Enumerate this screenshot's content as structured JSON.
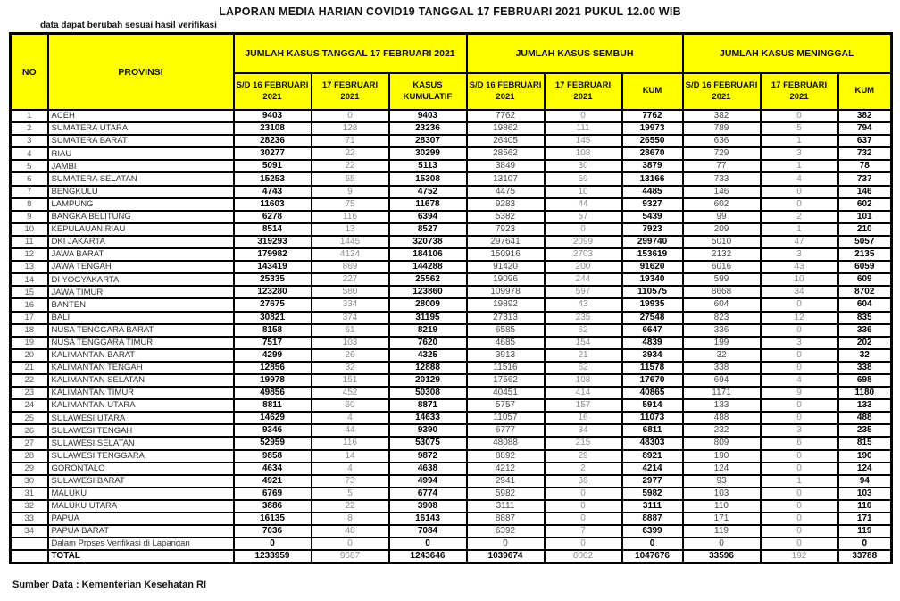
{
  "title": "LAPORAN MEDIA HARIAN COVID19 TANGGAL 17 FEBRUARI 2021 PUKUL 12.00 WIB",
  "note": "data dapat berubah sesuai hasil verifikasi",
  "footer": "Sumber Data : Kementerian Kesehatan RI",
  "colors": {
    "header_bg": "#FFFF00",
    "border": "#000000",
    "bold_value_text": "#000000",
    "muted_value_text": "#8C8C8C"
  },
  "table": {
    "col_no": "NO",
    "col_provinsi": "PROVINSI",
    "groups": [
      {
        "label": "JUMLAH KASUS TANGGAL 17 FEBRUARI 2021",
        "sub": [
          "S/D 16 FEBRUARI 2021",
          "17 FEBRUARI 2021",
          "KASUS KUMULATIF"
        ]
      },
      {
        "label": "JUMLAH KASUS SEMBUH",
        "sub": [
          "S/D 16 FEBRUARI 2021",
          "17 FEBRUARI 2021",
          "KUM"
        ]
      },
      {
        "label": "JUMLAH KASUS MENINGGAL",
        "sub": [
          "S/D 16 FEBRUARI 2021",
          "17 FEBRUARI 2021",
          "KUM"
        ]
      }
    ],
    "rows": [
      {
        "no": "1",
        "provinsi": "ACEH",
        "values": [
          9403,
          0,
          9403,
          7762,
          0,
          7762,
          382,
          0,
          382
        ]
      },
      {
        "no": "2",
        "provinsi": "SUMATERA UTARA",
        "values": [
          23108,
          128,
          23236,
          19862,
          111,
          19973,
          789,
          5,
          794
        ]
      },
      {
        "no": "3",
        "provinsi": "SUMATERA BARAT",
        "values": [
          28236,
          71,
          28307,
          26405,
          145,
          26550,
          636,
          1,
          637
        ]
      },
      {
        "no": "4",
        "provinsi": "RIAU",
        "values": [
          30277,
          22,
          30299,
          28562,
          108,
          28670,
          729,
          3,
          732
        ]
      },
      {
        "no": "5",
        "provinsi": "JAMBI",
        "values": [
          5091,
          22,
          5113,
          3849,
          30,
          3879,
          77,
          1,
          78
        ]
      },
      {
        "no": "6",
        "provinsi": "SUMATERA SELATAN",
        "values": [
          15253,
          55,
          15308,
          13107,
          59,
          13166,
          733,
          4,
          737
        ]
      },
      {
        "no": "7",
        "provinsi": "BENGKULU",
        "values": [
          4743,
          9,
          4752,
          4475,
          10,
          4485,
          146,
          0,
          146
        ]
      },
      {
        "no": "8",
        "provinsi": "LAMPUNG",
        "values": [
          11603,
          75,
          11678,
          9283,
          44,
          9327,
          602,
          0,
          602
        ]
      },
      {
        "no": "9",
        "provinsi": "BANGKA BELITUNG",
        "values": [
          6278,
          116,
          6394,
          5382,
          57,
          5439,
          99,
          2,
          101
        ]
      },
      {
        "no": "10",
        "provinsi": "KEPULAUAN RIAU",
        "values": [
          8514,
          13,
          8527,
          7923,
          0,
          7923,
          209,
          1,
          210
        ]
      },
      {
        "no": "11",
        "provinsi": "DKI JAKARTA",
        "values": [
          319293,
          1445,
          320738,
          297641,
          2099,
          299740,
          5010,
          47,
          5057
        ]
      },
      {
        "no": "12",
        "provinsi": "JAWA BARAT",
        "values": [
          179982,
          4124,
          184106,
          150916,
          2703,
          153619,
          2132,
          3,
          2135
        ]
      },
      {
        "no": "13",
        "provinsi": "JAWA TENGAH",
        "values": [
          143419,
          869,
          144288,
          91420,
          200,
          91620,
          6016,
          43,
          6059
        ]
      },
      {
        "no": "14",
        "provinsi": "DI YOGYAKARTA",
        "values": [
          25335,
          227,
          25562,
          19096,
          244,
          19340,
          599,
          10,
          609
        ]
      },
      {
        "no": "15",
        "provinsi": "JAWA TIMUR",
        "values": [
          123280,
          580,
          123860,
          109978,
          597,
          110575,
          8668,
          34,
          8702
        ]
      },
      {
        "no": "16",
        "provinsi": "BANTEN",
        "values": [
          27675,
          334,
          28009,
          19892,
          43,
          19935,
          604,
          0,
          604
        ]
      },
      {
        "no": "17",
        "provinsi": "BALI",
        "values": [
          30821,
          374,
          31195,
          27313,
          235,
          27548,
          823,
          12,
          835
        ]
      },
      {
        "no": "18",
        "provinsi": "NUSA TENGGARA BARAT",
        "values": [
          8158,
          61,
          8219,
          6585,
          62,
          6647,
          336,
          0,
          336
        ]
      },
      {
        "no": "19",
        "provinsi": "NUSA TENGGARA TIMUR",
        "values": [
          7517,
          103,
          7620,
          4685,
          154,
          4839,
          199,
          3,
          202
        ]
      },
      {
        "no": "20",
        "provinsi": "KALIMANTAN BARAT",
        "values": [
          4299,
          26,
          4325,
          3913,
          21,
          3934,
          32,
          0,
          32
        ]
      },
      {
        "no": "21",
        "provinsi": "KALIMANTAN TENGAH",
        "values": [
          12856,
          32,
          12888,
          11516,
          62,
          11578,
          338,
          0,
          338
        ]
      },
      {
        "no": "22",
        "provinsi": "KALIMANTAN SELATAN",
        "values": [
          19978,
          151,
          20129,
          17562,
          108,
          17670,
          694,
          4,
          698
        ]
      },
      {
        "no": "23",
        "provinsi": "KALIMANTAN TIMUR",
        "values": [
          49856,
          452,
          50308,
          40451,
          414,
          40865,
          1171,
          9,
          1180
        ]
      },
      {
        "no": "24",
        "provinsi": "KALIMANTAN UTARA",
        "values": [
          8811,
          60,
          8871,
          5757,
          157,
          5914,
          133,
          0,
          133
        ]
      },
      {
        "no": "25",
        "provinsi": "SULAWESI UTARA",
        "values": [
          14629,
          4,
          14633,
          11057,
          16,
          11073,
          488,
          0,
          488
        ]
      },
      {
        "no": "26",
        "provinsi": "SULAWESI TENGAH",
        "values": [
          9346,
          44,
          9390,
          6777,
          34,
          6811,
          232,
          3,
          235
        ]
      },
      {
        "no": "27",
        "provinsi": "SULAWESI SELATAN",
        "values": [
          52959,
          116,
          53075,
          48088,
          215,
          48303,
          809,
          6,
          815
        ]
      },
      {
        "no": "28",
        "provinsi": "SULAWESI TENGGARA",
        "values": [
          9858,
          14,
          9872,
          8892,
          29,
          8921,
          190,
          0,
          190
        ]
      },
      {
        "no": "29",
        "provinsi": "GORONTALO",
        "values": [
          4634,
          4,
          4638,
          4212,
          2,
          4214,
          124,
          0,
          124
        ]
      },
      {
        "no": "30",
        "provinsi": "SULAWESI BARAT",
        "values": [
          4921,
          73,
          4994,
          2941,
          36,
          2977,
          93,
          1,
          94
        ]
      },
      {
        "no": "31",
        "provinsi": "MALUKU",
        "values": [
          6769,
          5,
          6774,
          5982,
          0,
          5982,
          103,
          0,
          103
        ]
      },
      {
        "no": "32",
        "provinsi": "MALUKU UTARA",
        "values": [
          3886,
          22,
          3908,
          3111,
          0,
          3111,
          110,
          0,
          110
        ]
      },
      {
        "no": "33",
        "provinsi": "PAPUA",
        "values": [
          16135,
          8,
          16143,
          8887,
          0,
          8887,
          171,
          0,
          171
        ]
      },
      {
        "no": "34",
        "provinsi": "PAPUA BARAT",
        "values": [
          7036,
          48,
          7084,
          6392,
          7,
          6399,
          119,
          0,
          119
        ]
      }
    ],
    "verification_row": {
      "no": "",
      "provinsi": "Dalam Proses Verifikasi di Lapangan",
      "values": [
        0,
        0,
        0,
        0,
        0,
        0,
        0,
        0,
        0
      ]
    },
    "total_row": {
      "no": "",
      "provinsi": "TOTAL",
      "values": [
        1233959,
        9687,
        1243646,
        1039674,
        8002,
        1047676,
        33596,
        192,
        33788
      ]
    }
  }
}
